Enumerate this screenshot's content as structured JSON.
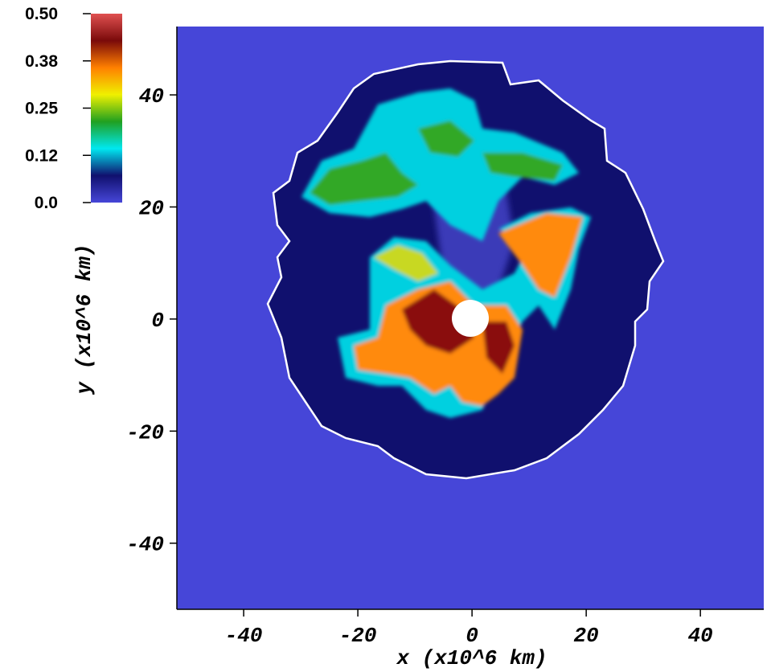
{
  "chart_data": {
    "type": "heatmap",
    "xlabel": "x  (x10^6 km)",
    "ylabel": "y  (x10^6 km)",
    "xlim": [
      -51.7,
      51.1
    ],
    "ylim": [
      -51.8,
      52.2
    ],
    "xticks": [
      -40,
      -20,
      0,
      20,
      40
    ],
    "yticks": [
      -40,
      -20,
      0,
      20,
      40
    ],
    "clim": [
      0,
      0.5
    ],
    "cticks": [
      {
        "value": 0.5,
        "label": "0.50"
      },
      {
        "value": 0.375,
        "label": "0.38"
      },
      {
        "value": 0.25,
        "label": "0.25"
      },
      {
        "value": 0.125,
        "label": "0.12"
      },
      {
        "value": 0,
        "label": "0.0"
      }
    ],
    "colormap": [
      "#4646d8",
      "#10106e",
      "#00e8f0",
      "#20a020",
      "#f0f000",
      "#ff8000",
      "#7a0a0a",
      "#e05050"
    ]
  }
}
